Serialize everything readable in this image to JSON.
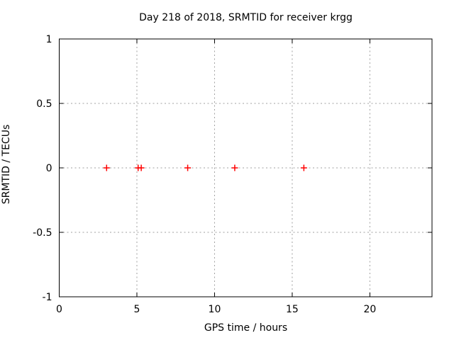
{
  "chart_data": {
    "type": "scatter",
    "title": "Day 218 of 2018, SRMTID for receiver krgg",
    "xlabel": "GPS time / hours",
    "ylabel": "SRMTID / TECUs",
    "xlim": [
      0,
      24
    ],
    "ylim": [
      -1,
      1
    ],
    "xticks": [
      0,
      5,
      10,
      15,
      20
    ],
    "yticks": [
      -1,
      -0.5,
      0,
      0.5,
      1
    ],
    "grid": true,
    "grid_style": "dashed",
    "grid_color": "#a0a0a0",
    "border_color": "#000000",
    "legend_position": "none",
    "marker": "plus",
    "marker_color": "#ff0000",
    "series": [
      {
        "name": "SRMTID",
        "x": [
          3.05,
          5.08,
          5.28,
          8.27,
          11.3,
          15.75
        ],
        "y": [
          0,
          0,
          0,
          0,
          0,
          0
        ]
      }
    ]
  }
}
